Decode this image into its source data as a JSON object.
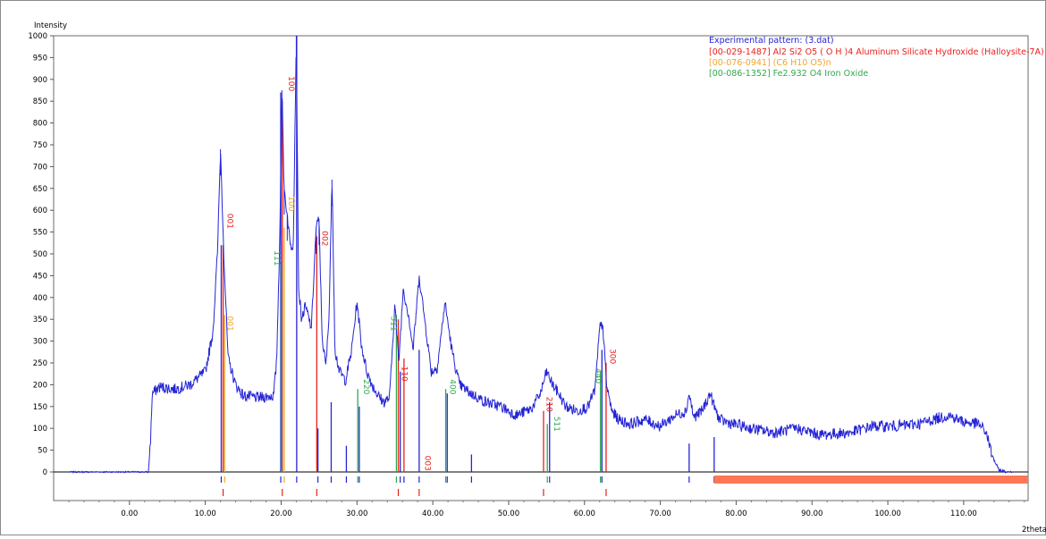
{
  "chart_data": {
    "type": "line",
    "ylabel": "Intensity",
    "xlabel": "2theta",
    "xlim": [
      -10,
      118.5
    ],
    "ylim": [
      0,
      1000
    ],
    "y_ticks": [
      0,
      50,
      100,
      150,
      200,
      250,
      300,
      350,
      400,
      450,
      500,
      550,
      600,
      650,
      700,
      750,
      800,
      850,
      900,
      950,
      1000
    ],
    "x_ticks": [
      0,
      10,
      20,
      30,
      40,
      50,
      60,
      70,
      80,
      90,
      100,
      110
    ],
    "x_tick_labels": [
      "0.00",
      "10.00",
      "20.00",
      "30.00",
      "40.00",
      "50.00",
      "60.00",
      "70.00",
      "80.00",
      "90.00",
      "100.00",
      "110.00"
    ],
    "grid": false,
    "legend": {
      "placement": "top-right",
      "entries": [
        {
          "label": "Experimental pattern: (3.dat)",
          "color": "#2424d6"
        },
        {
          "label": "[00-029-1487] Al2 Si2 O5 ( O H )4 Aluminum Silicate Hydroxide (Halloysite-7A)",
          "color": "#e8201c"
        },
        {
          "label": "[00-076-0941] (C6 H10 O5)n",
          "color": "#f2a62a"
        },
        {
          "label": "[00-086-1352] Fe2.932 O4 Iron Oxide",
          "color": "#2fa84f"
        }
      ]
    },
    "experimental_profile": {
      "name": "Experimental pattern: (3.dat)",
      "color": "#2424d6",
      "x": [
        -8,
        2.5,
        2.8,
        3.0,
        4,
        6,
        8,
        10,
        11,
        11.6,
        12.0,
        12.4,
        13,
        14,
        15,
        17,
        19,
        19.4,
        19.8,
        20.1,
        20.4,
        20.8,
        21.2,
        21.6,
        22.0,
        22.3,
        22.7,
        23.2,
        24.0,
        24.6,
        25.0,
        25.4,
        25.9,
        26.3,
        26.7,
        27.1,
        27.7,
        28.5,
        29.3,
        30.0,
        30.6,
        31.3,
        32.0,
        32.8,
        33.5,
        34.3,
        35.0,
        35.5,
        36.1,
        36.8,
        37.4,
        38.2,
        39.0,
        39.8,
        40.6,
        41.6,
        42.5,
        43.5,
        45,
        47,
        49,
        51,
        53,
        54.2,
        55.0,
        55.8,
        56.6,
        57.5,
        59,
        60.5,
        61.4,
        62.0,
        62.4,
        62.9,
        63.6,
        64.5,
        66,
        68,
        70,
        72,
        73.4,
        73.8,
        74.4,
        75.5,
        76.6,
        77.1,
        77.8,
        79.5,
        82,
        85,
        88,
        91,
        95,
        98,
        101,
        104,
        106,
        108,
        110,
        112,
        113.0,
        113.7,
        114.6,
        115.5,
        116.5
      ],
      "y": [
        0,
        0,
        80,
        180,
        195,
        190,
        200,
        230,
        320,
        500,
        740,
        520,
        260,
        200,
        175,
        170,
        175,
        250,
        520,
        875,
        650,
        590,
        520,
        520,
        1000,
        420,
        350,
        380,
        330,
        560,
        580,
        310,
        240,
        350,
        670,
        280,
        230,
        210,
        280,
        390,
        290,
        230,
        200,
        175,
        160,
        170,
        390,
        250,
        420,
        360,
        280,
        450,
        340,
        230,
        240,
        390,
        280,
        200,
        180,
        160,
        150,
        130,
        145,
        180,
        230,
        200,
        180,
        150,
        140,
        150,
        190,
        330,
        340,
        200,
        140,
        120,
        110,
        120,
        105,
        130,
        140,
        180,
        125,
        140,
        180,
        150,
        120,
        110,
        100,
        90,
        100,
        85,
        90,
        105,
        105,
        110,
        120,
        130,
        115,
        110,
        90,
        40,
        5,
        0,
        0
      ]
    },
    "reference_lines": [
      {
        "x": 12.1,
        "h": 520,
        "color": "#2424d6"
      },
      {
        "x": 12.35,
        "h": 520,
        "color": "#e8201c"
      },
      {
        "x": 12.55,
        "h": 360,
        "color": "#f2a62a"
      },
      {
        "x": 19.95,
        "h": 870,
        "color": "#2424d6"
      },
      {
        "x": 20.15,
        "h": 850,
        "color": "#e8201c"
      },
      {
        "x": 20.4,
        "h": 560,
        "color": "#f2a62a"
      },
      {
        "x": 20.05,
        "h": 480,
        "color": "#2fa84f"
      },
      {
        "x": 22.05,
        "h": 1000,
        "color": "#2424d6"
      },
      {
        "x": 24.7,
        "h": 540,
        "color": "#e8201c"
      },
      {
        "x": 24.85,
        "h": 100,
        "color": "#2424d6"
      },
      {
        "x": 26.6,
        "h": 160,
        "color": "#2424d6"
      },
      {
        "x": 28.6,
        "h": 60,
        "color": "#2424d6"
      },
      {
        "x": 30.1,
        "h": 190,
        "color": "#2fa84f"
      },
      {
        "x": 30.3,
        "h": 150,
        "color": "#2424d6"
      },
      {
        "x": 35.2,
        "h": 360,
        "color": "#2fa84f"
      },
      {
        "x": 35.45,
        "h": 350,
        "color": "#e8201c"
      },
      {
        "x": 35.7,
        "h": 230,
        "color": "#2424d6"
      },
      {
        "x": 36.2,
        "h": 260,
        "color": "#e8201c"
      },
      {
        "x": 38.2,
        "h": 280,
        "color": "#2424d6"
      },
      {
        "x": 41.7,
        "h": 190,
        "color": "#2fa84f"
      },
      {
        "x": 41.9,
        "h": 180,
        "color": "#2424d6"
      },
      {
        "x": 45.1,
        "h": 40,
        "color": "#2424d6"
      },
      {
        "x": 54.6,
        "h": 140,
        "color": "#e8201c"
      },
      {
        "x": 55.1,
        "h": 110,
        "color": "#2fa84f"
      },
      {
        "x": 55.4,
        "h": 160,
        "color": "#2424d6"
      },
      {
        "x": 62.1,
        "h": 230,
        "color": "#2fa84f"
      },
      {
        "x": 62.3,
        "h": 280,
        "color": "#2424d6"
      },
      {
        "x": 62.85,
        "h": 250,
        "color": "#e8201c"
      },
      {
        "x": 73.8,
        "h": 65,
        "color": "#2424d6"
      },
      {
        "x": 77.1,
        "h": 80,
        "color": "#2424d6"
      }
    ],
    "peak_labels": [
      {
        "text": "001",
        "x": 12.9,
        "y": 575,
        "color": "#e8201c"
      },
      {
        "text": "001",
        "x": 12.9,
        "y": 340,
        "color": "#f2a62a"
      },
      {
        "text": "111",
        "x": 19.1,
        "y": 490,
        "color": "#2fa84f"
      },
      {
        "text": "100",
        "x": 21.0,
        "y": 890,
        "color": "#e8201c"
      },
      {
        "text": "100",
        "x": 21.0,
        "y": 615,
        "color": "#f2a62a"
      },
      {
        "text": "002",
        "x": 25.4,
        "y": 535,
        "color": "#e8201c"
      },
      {
        "text": "220",
        "x": 30.9,
        "y": 195,
        "color": "#2fa84f"
      },
      {
        "text": "311",
        "x": 34.5,
        "y": 340,
        "color": "#2fa84f"
      },
      {
        "text": "110",
        "x": 35.9,
        "y": 225,
        "color": "#e8201c"
      },
      {
        "text": "003",
        "x": 39.0,
        "y": 20,
        "color": "#e8201c"
      },
      {
        "text": "400",
        "x": 42.3,
        "y": 195,
        "color": "#2fa84f"
      },
      {
        "text": "210",
        "x": 55.0,
        "y": 155,
        "color": "#e8201c"
      },
      {
        "text": "511",
        "x": 56.0,
        "y": 110,
        "color": "#2fa84f"
      },
      {
        "text": "440",
        "x": 61.5,
        "y": 220,
        "color": "#2fa84f"
      },
      {
        "text": "300",
        "x": 63.4,
        "y": 265,
        "color": "#e8201c"
      }
    ],
    "ticks_strip_1": [
      {
        "x": 12.1,
        "color": "#2424d6"
      },
      {
        "x": 12.55,
        "color": "#f2a62a"
      },
      {
        "x": 19.95,
        "color": "#2424d6"
      },
      {
        "x": 20.4,
        "color": "#f2a62a"
      },
      {
        "x": 22.05,
        "color": "#2424d6"
      },
      {
        "x": 24.85,
        "color": "#2424d6"
      },
      {
        "x": 26.6,
        "color": "#2424d6"
      },
      {
        "x": 28.6,
        "color": "#2424d6"
      },
      {
        "x": 30.1,
        "color": "#2fa84f"
      },
      {
        "x": 30.3,
        "color": "#2424d6"
      },
      {
        "x": 35.2,
        "color": "#2fa84f"
      },
      {
        "x": 35.7,
        "color": "#2424d6"
      },
      {
        "x": 36.2,
        "color": "#2424d6"
      },
      {
        "x": 38.2,
        "color": "#2424d6"
      },
      {
        "x": 41.7,
        "color": "#2fa84f"
      },
      {
        "x": 41.9,
        "color": "#2424d6"
      },
      {
        "x": 45.1,
        "color": "#2424d6"
      },
      {
        "x": 55.1,
        "color": "#2fa84f"
      },
      {
        "x": 55.4,
        "color": "#2424d6"
      },
      {
        "x": 62.1,
        "color": "#2fa84f"
      },
      {
        "x": 62.3,
        "color": "#2424d6"
      },
      {
        "x": 73.8,
        "color": "#2424d6"
      },
      {
        "x": 77.1,
        "color": "#2424d6"
      }
    ],
    "ticks_strip_2": [
      12.35,
      20.15,
      24.7,
      35.45,
      38.2,
      54.6,
      62.85
    ],
    "ticks_strip_2_color": "#e8201c",
    "excluded_range": {
      "from": 77.1,
      "to": 118.5,
      "color": "#ff7755"
    }
  }
}
